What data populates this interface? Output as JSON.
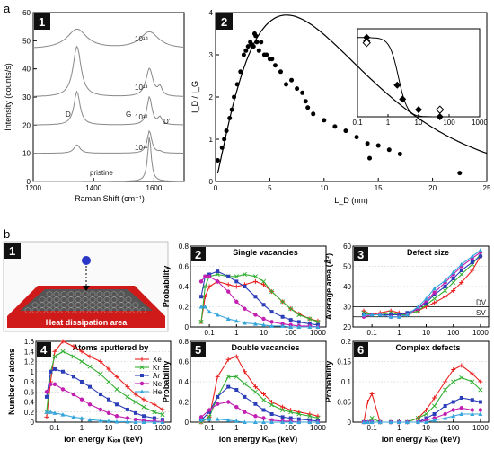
{
  "section_labels": {
    "a": "a",
    "b": "b"
  },
  "panel_labels": {
    "a1": "1",
    "a2": "2",
    "b1": "1",
    "b2": "2",
    "b3": "3",
    "b4": "4",
    "b5": "5",
    "b6": "6"
  },
  "colors": {
    "Xe": "#e8211f",
    "Kr": "#33b033",
    "Ar": "#2c3fb8",
    "Ne": "#c21eb0",
    "He": "#36a6da"
  },
  "heat_area_label": "Heat dissipation area",
  "chart_data": [
    {
      "id": "a1",
      "type": "line",
      "xlabel": "Raman Shift (cm⁻¹)",
      "ylabel": "Intensity (counts/s)",
      "xlim": [
        1200,
        1700
      ],
      "ylim": [
        0,
        60
      ],
      "xticks": [
        "1200",
        "1400",
        "1600"
      ],
      "yticks": [
        "0",
        "10",
        "20",
        "30",
        "40",
        "50",
        "60"
      ],
      "spectra": [
        {
          "name": "pristine",
          "offset": 0
        },
        {
          "name": "10¹¹",
          "offset": 10
        },
        {
          "name": "10¹²",
          "offset": 20
        },
        {
          "name": "10¹³",
          "offset": 30
        },
        {
          "name": "10¹⁴",
          "offset": 47
        }
      ],
      "peak_labels": [
        "D",
        "G",
        "D'"
      ],
      "peaks_cm": {
        "D": 1345,
        "G": 1585,
        "Dprime": 1620
      }
    },
    {
      "id": "a2",
      "type": "scatter",
      "xlabel": "L_D (nm)",
      "ylabel": "I_D / I_G",
      "xlim": [
        0,
        25
      ],
      "ylim": [
        0,
        4
      ],
      "xticks": [
        "0",
        "5",
        "10",
        "15",
        "20",
        "25"
      ],
      "yticks": [
        "0",
        "1",
        "2",
        "3",
        "4"
      ],
      "points": [
        [
          0.2,
          0.5
        ],
        [
          0.6,
          0.8
        ],
        [
          0.8,
          1.0
        ],
        [
          1.0,
          1.2
        ],
        [
          1.3,
          1.5
        ],
        [
          1.5,
          1.7
        ],
        [
          1.7,
          2.0
        ],
        [
          2.0,
          2.3
        ],
        [
          2.3,
          2.6
        ],
        [
          2.6,
          3.0
        ],
        [
          2.8,
          3.1
        ],
        [
          3.0,
          3.2
        ],
        [
          3.2,
          3.3
        ],
        [
          3.3,
          3.25
        ],
        [
          3.5,
          3.2
        ],
        [
          3.6,
          3.5
        ],
        [
          3.7,
          3.45
        ],
        [
          3.8,
          3.3
        ],
        [
          4.0,
          3.1
        ],
        [
          4.2,
          3.3
        ],
        [
          4.5,
          3.0
        ],
        [
          4.7,
          3.0
        ],
        [
          5.0,
          2.9
        ],
        [
          5.2,
          2.9
        ],
        [
          5.5,
          2.75
        ],
        [
          6.0,
          2.6
        ],
        [
          6.5,
          2.3
        ],
        [
          7.0,
          2.4
        ],
        [
          7.5,
          2.2
        ],
        [
          8.0,
          2.1
        ],
        [
          8.3,
          1.9
        ],
        [
          8.5,
          1.75
        ],
        [
          9.0,
          1.6
        ],
        [
          10.0,
          1.45
        ],
        [
          11.0,
          1.3
        ],
        [
          12.0,
          1.2
        ],
        [
          13.0,
          1.05
        ],
        [
          14.0,
          0.9
        ],
        [
          14.2,
          0.55
        ],
        [
          15.0,
          0.85
        ],
        [
          16.0,
          0.75
        ],
        [
          17.0,
          0.65
        ],
        [
          22.5,
          0.2
        ]
      ],
      "inset": {
        "xscale": "log",
        "xlim": [
          0.1,
          1000
        ],
        "ylim": [
          0,
          0.5
        ],
        "xticks": [
          "0.1",
          "1",
          "10",
          "100",
          "1000"
        ],
        "points": [
          [
            0.2,
            0.45
          ],
          [
            0.2,
            0.43
          ],
          [
            2,
            0.18
          ],
          [
            3,
            0.1
          ],
          [
            10,
            0.04
          ],
          [
            50,
            0.0
          ]
        ],
        "open_points": [
          [
            0.2,
            0.42
          ],
          [
            50,
            0.04
          ]
        ]
      }
    },
    {
      "id": "b2",
      "type": "line",
      "title": "Single vacancies",
      "xscale": "log",
      "xlim": [
        0.02,
        2000
      ],
      "ylim": [
        0,
        0.8
      ],
      "ylabel": "Probability",
      "xticks": [
        "0.1",
        "1",
        "10",
        "100",
        "1000"
      ],
      "yticks": [
        "0",
        "0.2",
        "0.4",
        "0.6",
        "0.8"
      ],
      "x": [
        0.05,
        0.07,
        0.1,
        0.2,
        0.5,
        1,
        2,
        5,
        10,
        20,
        50,
        100,
        200,
        500,
        1000
      ],
      "series": [
        {
          "name": "Xe",
          "values": [
            0.05,
            0.3,
            0.4,
            0.45,
            0.42,
            0.4,
            0.42,
            0.45,
            0.42,
            0.35,
            0.25,
            0.18,
            0.13,
            0.08,
            0.06
          ]
        },
        {
          "name": "Kr",
          "values": [
            0.05,
            0.4,
            0.5,
            0.52,
            0.5,
            0.5,
            0.52,
            0.5,
            0.45,
            0.35,
            0.25,
            0.18,
            0.12,
            0.08,
            0.05
          ]
        },
        {
          "name": "Ar",
          "values": [
            0.3,
            0.5,
            0.52,
            0.55,
            0.5,
            0.45,
            0.4,
            0.3,
            0.22,
            0.15,
            0.1,
            0.07,
            0.05,
            0.03,
            0.02
          ]
        },
        {
          "name": "Ne",
          "values": [
            0.45,
            0.5,
            0.5,
            0.45,
            0.35,
            0.25,
            0.18,
            0.12,
            0.08,
            0.05,
            0.03,
            0.02,
            0.01,
            0.01,
            0.0
          ]
        },
        {
          "name": "He",
          "values": [
            0.2,
            0.2,
            0.15,
            0.12,
            0.08,
            0.06,
            0.04,
            0.03,
            0.02,
            0.01,
            0.01,
            0.0,
            0.0,
            0.0,
            0.0
          ]
        }
      ]
    },
    {
      "id": "b3",
      "type": "line",
      "title": "Defect size",
      "xscale": "log",
      "xlim": [
        0.02,
        2000
      ],
      "ylim": [
        20,
        60
      ],
      "ylabel": "Average area (Å²)",
      "xticks": [
        "0.1",
        "1",
        "10",
        "100",
        "1000"
      ],
      "yticks": [
        "20",
        "30",
        "40",
        "50",
        "60"
      ],
      "reference_lines": [
        {
          "label": "DV",
          "value": 30
        },
        {
          "label": "SV",
          "value": 25
        }
      ],
      "x": [
        0.05,
        0.1,
        0.2,
        0.5,
        1,
        2,
        5,
        10,
        20,
        50,
        100,
        200,
        500,
        1000
      ],
      "series": [
        {
          "name": "Xe",
          "values": [
            28,
            26,
            27,
            28,
            27,
            26,
            28,
            30,
            32,
            35,
            38,
            42,
            48,
            55
          ]
        },
        {
          "name": "Kr",
          "values": [
            27,
            26,
            26,
            27,
            26,
            26,
            28,
            31,
            34,
            38,
            42,
            46,
            51,
            56
          ]
        },
        {
          "name": "Ar",
          "values": [
            26,
            26,
            26,
            26,
            26,
            27,
            29,
            32,
            36,
            40,
            44,
            48,
            52,
            55
          ]
        },
        {
          "name": "Ne",
          "values": [
            25,
            26,
            26,
            25,
            25,
            26,
            29,
            33,
            37,
            42,
            46,
            50,
            54,
            57
          ]
        },
        {
          "name": "He",
          "values": [
            26,
            26,
            26,
            25,
            25,
            26,
            30,
            34,
            39,
            43,
            47,
            51,
            55,
            58
          ]
        }
      ]
    },
    {
      "id": "b4",
      "type": "line",
      "title": "Atoms sputtered by",
      "xscale": "log",
      "xlim": [
        0.02,
        2000
      ],
      "ylim": [
        0,
        1.6
      ],
      "ylabel": "Number of atoms",
      "xlabel": "Ion energy Kᵢₒₙ (keV)",
      "xticks": [
        "0.1",
        "1",
        "10",
        "100",
        "1000"
      ],
      "yticks": [
        "0",
        "0.2",
        "0.4",
        "0.6",
        "0.8",
        "1",
        "1.2",
        "1.4",
        "1.6"
      ],
      "legend": [
        "Xe",
        "Kr",
        "Ar",
        "Ne",
        "He"
      ],
      "x": [
        0.05,
        0.07,
        0.1,
        0.2,
        0.5,
        1,
        2,
        5,
        10,
        20,
        50,
        100,
        200,
        500,
        1000
      ],
      "series": [
        {
          "name": "Xe",
          "values": [
            0.1,
            0.8,
            1.4,
            1.6,
            1.5,
            1.4,
            1.3,
            1.2,
            1.05,
            0.9,
            0.7,
            0.55,
            0.45,
            0.35,
            0.25
          ]
        },
        {
          "name": "Kr",
          "values": [
            0.2,
            1.0,
            1.3,
            1.4,
            1.3,
            1.2,
            1.1,
            0.95,
            0.8,
            0.65,
            0.5,
            0.4,
            0.3,
            0.2,
            0.15
          ]
        },
        {
          "name": "Ar",
          "values": [
            0.5,
            1.0,
            1.05,
            1.0,
            0.9,
            0.8,
            0.7,
            0.55,
            0.45,
            0.35,
            0.25,
            0.18,
            0.12,
            0.08,
            0.05
          ]
        },
        {
          "name": "Ne",
          "values": [
            0.6,
            0.75,
            0.75,
            0.65,
            0.55,
            0.45,
            0.35,
            0.25,
            0.18,
            0.12,
            0.08,
            0.05,
            0.03,
            0.02,
            0.01
          ]
        },
        {
          "name": "He",
          "values": [
            0.2,
            0.2,
            0.18,
            0.15,
            0.1,
            0.08,
            0.05,
            0.03,
            0.02,
            0.01,
            0.01,
            0.0,
            0.0,
            0.0,
            0.0
          ]
        }
      ]
    },
    {
      "id": "b5",
      "type": "line",
      "title": "Double vacancies",
      "xscale": "log",
      "xlim": [
        0.02,
        2000
      ],
      "ylim": [
        0,
        0.8
      ],
      "ylabel": "Probability",
      "xlabel": "Ion energy Kᵢₒₙ (keV)",
      "xticks": [
        "0.1",
        "1",
        "10",
        "100",
        "1000"
      ],
      "yticks": [
        "0",
        "0.2",
        "0.4",
        "0.6",
        "0.8"
      ],
      "x": [
        0.05,
        0.1,
        0.2,
        0.5,
        1,
        2,
        5,
        10,
        20,
        50,
        100,
        200,
        500,
        1000
      ],
      "series": [
        {
          "name": "Xe",
          "values": [
            0.0,
            0.05,
            0.45,
            0.62,
            0.65,
            0.5,
            0.35,
            0.28,
            0.2,
            0.15,
            0.12,
            0.1,
            0.08,
            0.06
          ]
        },
        {
          "name": "Kr",
          "values": [
            0.0,
            0.05,
            0.25,
            0.45,
            0.45,
            0.38,
            0.3,
            0.22,
            0.17,
            0.12,
            0.1,
            0.08,
            0.06,
            0.04
          ]
        },
        {
          "name": "Ar",
          "values": [
            0.02,
            0.1,
            0.25,
            0.35,
            0.32,
            0.25,
            0.18,
            0.12,
            0.08,
            0.05,
            0.04,
            0.03,
            0.02,
            0.01
          ]
        },
        {
          "name": "Ne",
          "values": [
            0.05,
            0.12,
            0.18,
            0.2,
            0.15,
            0.1,
            0.06,
            0.04,
            0.02,
            0.01,
            0.01,
            0.0,
            0.0,
            0.0
          ]
        },
        {
          "name": "He",
          "values": [
            0.02,
            0.03,
            0.03,
            0.02,
            0.01,
            0.0,
            0.0,
            0.0,
            0.0,
            0.0,
            0.0,
            0.0,
            0.0,
            0.0
          ]
        }
      ]
    },
    {
      "id": "b6",
      "type": "line",
      "title": "Complex defects",
      "xscale": "log",
      "xlim": [
        0.02,
        2000
      ],
      "ylim": [
        0,
        0.2
      ],
      "ylabel": "Probability",
      "xlabel": "Ion energy Kᵢₒₙ (keV)",
      "xticks": [
        "0.1",
        "1",
        "10",
        "100",
        "1000"
      ],
      "yticks": [
        "0",
        "0.05",
        "0.1",
        "0.15",
        "0.2"
      ],
      "x": [
        0.05,
        0.07,
        0.1,
        0.2,
        0.5,
        1,
        2,
        5,
        10,
        20,
        50,
        100,
        200,
        500,
        1000
      ],
      "series": [
        {
          "name": "Xe",
          "values": [
            0.0,
            0.05,
            0.07,
            0.0,
            0.0,
            0.0,
            0.0,
            0.01,
            0.03,
            0.06,
            0.1,
            0.13,
            0.14,
            0.12,
            0.1
          ]
        },
        {
          "name": "Kr",
          "values": [
            0.0,
            0.0,
            0.01,
            0.0,
            0.0,
            0.0,
            0.0,
            0.01,
            0.02,
            0.04,
            0.08,
            0.1,
            0.11,
            0.1,
            0.08
          ]
        },
        {
          "name": "Ar",
          "values": [
            0.0,
            0.0,
            0.0,
            0.0,
            0.0,
            0.0,
            0.0,
            0.0,
            0.01,
            0.02,
            0.04,
            0.05,
            0.06,
            0.055,
            0.05
          ]
        },
        {
          "name": "Ne",
          "values": [
            0.0,
            0.0,
            0.0,
            0.0,
            0.0,
            0.0,
            0.0,
            0.0,
            0.005,
            0.01,
            0.02,
            0.03,
            0.035,
            0.03,
            0.03
          ]
        },
        {
          "name": "He",
          "values": [
            0.0,
            0.0,
            0.0,
            0.0,
            0.0,
            0.0,
            0.0,
            0.0,
            0.0,
            0.005,
            0.01,
            0.015,
            0.02,
            0.02,
            0.02
          ]
        }
      ]
    }
  ]
}
